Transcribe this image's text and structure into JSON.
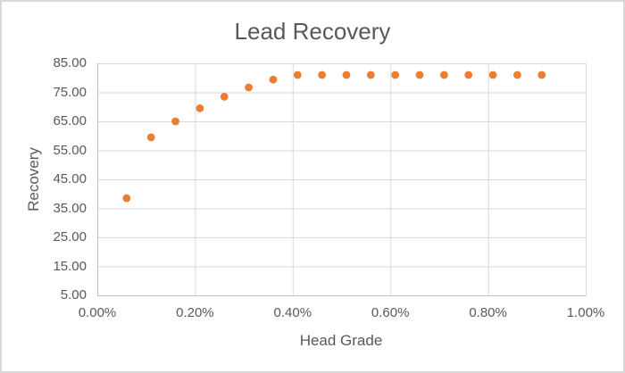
{
  "chart_data": {
    "type": "scatter",
    "title": "Lead Recovery",
    "xlabel": "Head Grade",
    "ylabel": "Recovery",
    "xlim": [
      0,
      1
    ],
    "ylim": [
      5,
      85
    ],
    "grid": true,
    "legend": "none",
    "x_ticks": {
      "values": [
        0,
        0.2,
        0.4,
        0.6,
        0.8,
        1.0
      ],
      "labels": [
        "0.00%",
        "0.20%",
        "0.40%",
        "0.60%",
        "0.80%",
        "1.00%"
      ]
    },
    "y_ticks": {
      "values": [
        5,
        15,
        25,
        35,
        45,
        55,
        65,
        75,
        85
      ],
      "labels": [
        "5.00",
        "15.00",
        "25.00",
        "35.00",
        "45.00",
        "55.00",
        "65.00",
        "75.00",
        "85.00"
      ]
    },
    "series": [
      {
        "marker": "circle",
        "color": "#ED7D31",
        "x": [
          0.06,
          0.11,
          0.16,
          0.21,
          0.26,
          0.31,
          0.36,
          0.41,
          0.46,
          0.51,
          0.56,
          0.61,
          0.66,
          0.71,
          0.76,
          0.81,
          0.86,
          0.91
        ],
        "y": [
          38.5,
          59.5,
          65.0,
          69.5,
          73.5,
          76.7,
          79.4,
          81.0,
          81.0,
          81.0,
          81.0,
          81.0,
          81.0,
          81.0,
          81.0,
          81.0,
          81.0,
          81.0
        ]
      }
    ]
  },
  "colors": {
    "marker": "#ED7D31",
    "text": "#595959",
    "gridline": "#D9D9D9",
    "axis_line": "#BFBFBF",
    "chart_border": "#D9D9D9",
    "background": "#FFFFFF"
  }
}
